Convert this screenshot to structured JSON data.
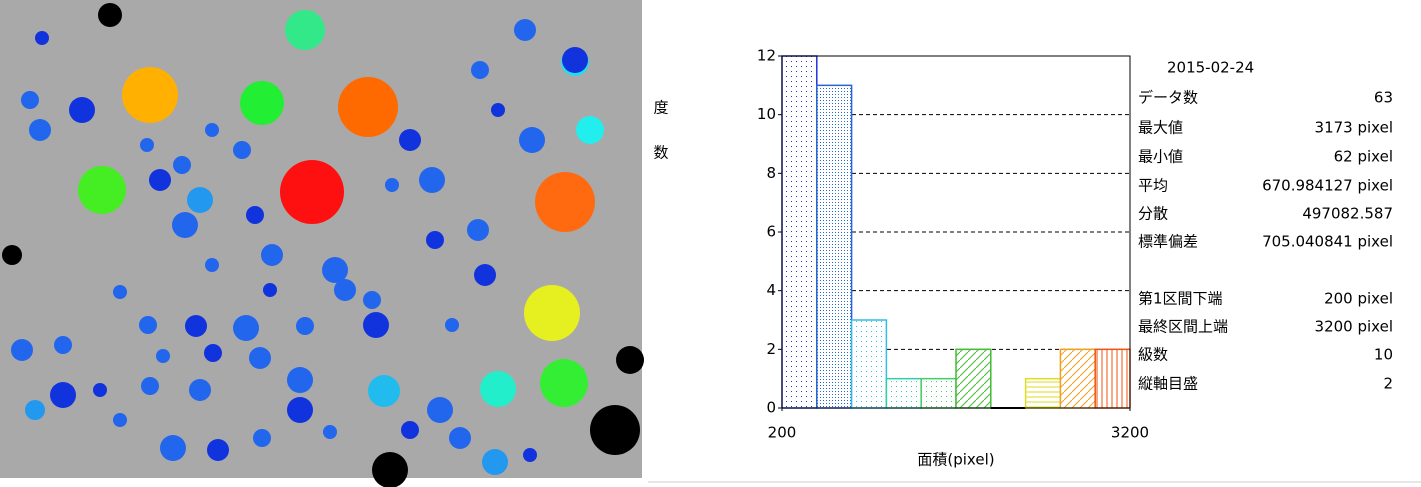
{
  "chart_data": {
    "type": "histogram",
    "ylabel": "度数",
    "xlabel": "面積(pixel)",
    "bins": [
      200,
      500,
      800,
      1100,
      1400,
      1700,
      2000,
      2300,
      2600,
      2900,
      3200
    ],
    "values": [
      12,
      11,
      3,
      1,
      1,
      2,
      0,
      1,
      2,
      2
    ],
    "colors": [
      "#2233dd",
      "#2a66d0",
      "#33bbe6",
      "#33ccaa",
      "#44cc66",
      "#44bb33",
      "#000000",
      "#dddd22",
      "#f0a020",
      "#ee5511"
    ],
    "hatches": [
      "dots",
      "dense",
      "dots",
      "dots",
      "dots",
      "diag",
      "none",
      "hlines",
      "diag",
      "vlines"
    ],
    "xlim": [
      200,
      3200
    ],
    "xticks": [
      200,
      3200
    ],
    "ylim": [
      0,
      12
    ],
    "yticks": [
      0,
      2,
      4,
      6,
      8,
      10,
      12
    ],
    "grid": true
  },
  "stats": {
    "date": "2015-02-24",
    "rows": [
      [
        "データ数",
        "63"
      ],
      [
        "最大値",
        "3173 pixel"
      ],
      [
        "最小値",
        "62 pixel"
      ],
      [
        "平均",
        "670.984127 pixel"
      ],
      [
        "分散",
        "497082.587"
      ],
      [
        "標準偏差",
        "705.040841 pixel"
      ],
      [
        "第1区間下端",
        "200 pixel"
      ],
      [
        "最終区間上端",
        "3200 pixel"
      ],
      [
        "級数",
        "10"
      ],
      [
        "縦軸目盛",
        "2"
      ]
    ]
  }
}
